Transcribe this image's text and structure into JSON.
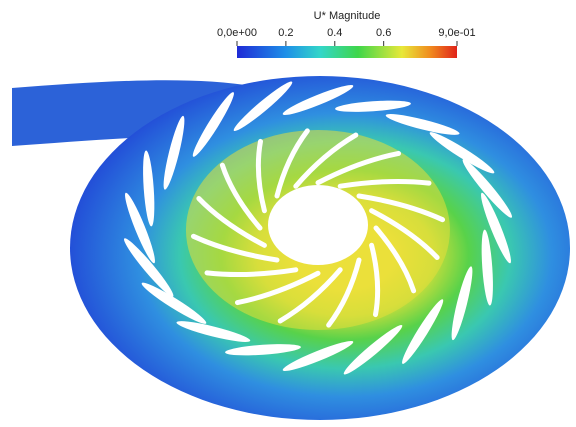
{
  "colorbar": {
    "title": "U* Magnitude",
    "range": [
      0,
      0.9
    ],
    "ticks": [
      {
        "value": 0,
        "label": "0,0e+00"
      },
      0.2,
      0.4,
      0.6,
      {
        "value": 0.9,
        "label": "9,0e-01"
      }
    ]
  }
}
